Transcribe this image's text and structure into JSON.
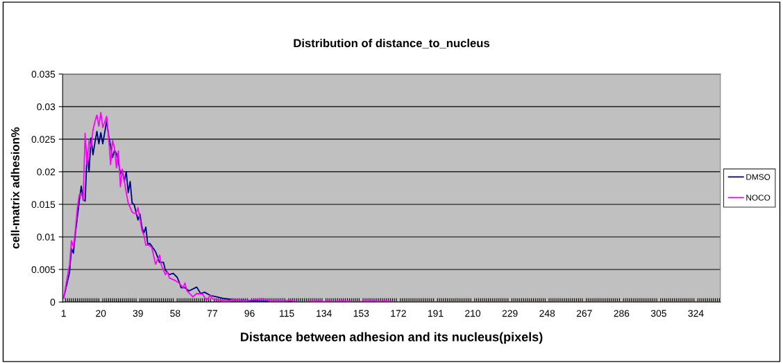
{
  "chart_data": {
    "type": "line",
    "title": "Distribution of distance_to_nucleus",
    "xlabel": "Distance between adhesion and its nucleus(pixels)",
    "ylabel": "cell-matrix adhesion%",
    "xlim": [
      0.5,
      336.5
    ],
    "xticks": [
      1,
      20,
      39,
      58,
      77,
      96,
      115,
      134,
      153,
      172,
      191,
      210,
      229,
      248,
      267,
      286,
      305,
      324
    ],
    "ylim": [
      0,
      0.035
    ],
    "yticks": [
      0,
      0.005,
      0.01,
      0.015,
      0.02,
      0.025,
      0.03,
      0.035
    ],
    "grid": "y",
    "legend": "right",
    "marker": "none",
    "line_style": "solid",
    "series": [
      {
        "name": "DMSO",
        "color": "#000080",
        "x": [
          1,
          4,
          5,
          6,
          7,
          8,
          9,
          10,
          11,
          12,
          13,
          14,
          15,
          16,
          17,
          18,
          19,
          20,
          21,
          23,
          24,
          25,
          26,
          27,
          28,
          29,
          30,
          31,
          32,
          33,
          34,
          35,
          36,
          37,
          38,
          39,
          40,
          41,
          42,
          43,
          44,
          45,
          46,
          48,
          50,
          52,
          53,
          55,
          57,
          59,
          60,
          61,
          63,
          65,
          69,
          71,
          73,
          76,
          79,
          82,
          86,
          90,
          97,
          105,
          122,
          336
        ],
        "values": [
          0.0006,
          0.0045,
          0.0082,
          0.0075,
          0.0105,
          0.013,
          0.0155,
          0.0178,
          0.0157,
          0.0155,
          0.023,
          0.02,
          0.0252,
          0.0226,
          0.0245,
          0.0262,
          0.0243,
          0.026,
          0.0243,
          0.0278,
          0.0255,
          0.024,
          0.0222,
          0.0233,
          0.0228,
          0.0215,
          0.0197,
          0.0203,
          0.0185,
          0.02,
          0.0168,
          0.0185,
          0.0152,
          0.015,
          0.0138,
          0.0126,
          0.0135,
          0.0115,
          0.0106,
          0.0115,
          0.0088,
          0.009,
          0.0086,
          0.0077,
          0.0061,
          0.0061,
          0.0049,
          0.0042,
          0.0044,
          0.0038,
          0.0031,
          0.0022,
          0.0022,
          0.0017,
          0.0023,
          0.0013,
          0.0015,
          0.001,
          0.0008,
          0.0006,
          0.0004,
          0.0003,
          0.0002,
          0.0001,
          0,
          0
        ]
      },
      {
        "name": "NOCO",
        "color": "#ff00ff",
        "x": [
          1,
          4,
          5,
          6,
          7,
          8,
          9,
          10,
          11,
          12,
          13,
          14,
          15,
          16,
          17,
          18,
          19,
          20,
          21,
          23,
          24,
          25,
          26,
          27,
          28,
          29,
          30,
          31,
          33,
          34,
          36,
          38,
          39,
          41,
          42,
          43,
          44,
          46,
          48,
          50,
          51,
          53,
          54,
          55,
          58,
          60,
          62,
          63,
          64,
          67,
          69,
          72,
          74,
          76,
          77,
          80,
          84,
          88,
          93,
          97,
          103,
          106,
          113,
          117,
          120,
          125,
          132,
          134,
          136,
          139,
          143,
          150,
          160,
          162,
          164,
          170,
          336
        ],
        "values": [
          0.0006,
          0.0057,
          0.0094,
          0.0085,
          0.011,
          0.0144,
          0.0165,
          0.0167,
          0.0156,
          0.0259,
          0.021,
          0.0248,
          0.0238,
          0.0264,
          0.0277,
          0.0287,
          0.027,
          0.0291,
          0.0268,
          0.0285,
          0.0252,
          0.0211,
          0.0248,
          0.0236,
          0.0206,
          0.0232,
          0.0177,
          0.0204,
          0.0168,
          0.0152,
          0.0138,
          0.0135,
          0.0145,
          0.011,
          0.0103,
          0.0087,
          0.0088,
          0.0084,
          0.0058,
          0.0072,
          0.0056,
          0.0042,
          0.0047,
          0.0037,
          0.0033,
          0.0029,
          0.0022,
          0.0029,
          0.0017,
          0.0008,
          0.0013,
          0.0012,
          0.0003,
          0.001,
          0.0005,
          0.0003,
          0.0001,
          0.0004,
          0.0002,
          0.0003,
          0.0005,
          0.0002,
          0.0002,
          0.0003,
          0,
          0,
          0.0002,
          0,
          0.0002,
          0,
          0.0002,
          0,
          0.0002,
          0,
          0.0002,
          0,
          0
        ]
      }
    ]
  }
}
